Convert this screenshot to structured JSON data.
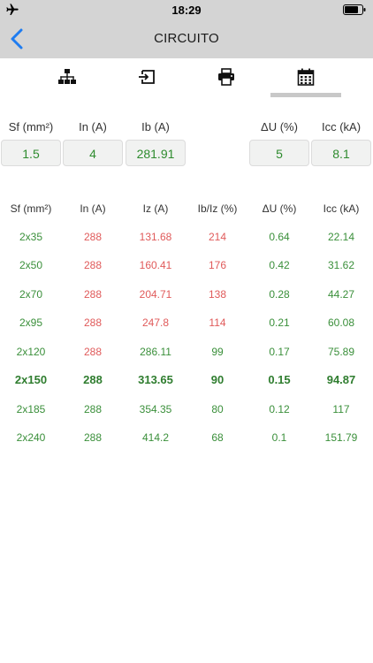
{
  "status": {
    "time": "18:29"
  },
  "nav": {
    "title": "CIRCUITO"
  },
  "tabs": [
    {
      "icon": "sitemap-icon"
    },
    {
      "icon": "input-icon"
    },
    {
      "icon": "print-icon"
    },
    {
      "icon": "calendar-icon",
      "active": true
    }
  ],
  "inputs": [
    {
      "label": "Sf (mm²)",
      "value": "1.5"
    },
    {
      "label": "In (A)",
      "value": "4"
    },
    {
      "label": "Ib (A)",
      "value": "281.91"
    },
    {
      "label": "ΔU (%)",
      "value": "5"
    },
    {
      "label": "Icc (kA)",
      "value": "8.1"
    }
  ],
  "table": {
    "headers": [
      "Sf (mm²)",
      "In (A)",
      "Iz (A)",
      "Ib/Iz (%)",
      "ΔU (%)",
      "Icc (kA)"
    ],
    "rows": [
      {
        "sf": "2x35",
        "in": "288",
        "iz": "131.68",
        "ibiz": "214",
        "du": "0.64",
        "icc": "22.14"
      },
      {
        "sf": "2x50",
        "in": "288",
        "iz": "160.41",
        "ibiz": "176",
        "du": "0.42",
        "icc": "31.62"
      },
      {
        "sf": "2x70",
        "in": "288",
        "iz": "204.71",
        "ibiz": "138",
        "du": "0.28",
        "icc": "44.27"
      },
      {
        "sf": "2x95",
        "in": "288",
        "iz": "247.8",
        "ibiz": "114",
        "du": "0.21",
        "icc": "60.08"
      },
      {
        "sf": "2x120",
        "in": "288",
        "iz": "286.11",
        "ibiz": "99",
        "du": "0.17",
        "icc": "75.89"
      },
      {
        "sf": "2x150",
        "in": "288",
        "iz": "313.65",
        "ibiz": "90",
        "du": "0.15",
        "icc": "94.87"
      },
      {
        "sf": "2x185",
        "in": "288",
        "iz": "354.35",
        "ibiz": "80",
        "du": "0.12",
        "icc": "117"
      },
      {
        "sf": "2x240",
        "in": "288",
        "iz": "414.2",
        "ibiz": "68",
        "du": "0.1",
        "icc": "151.79"
      }
    ]
  },
  "colors": {
    "ok": "#3a8f3a",
    "warn": "#e05a5a",
    "bar": "#d4d4d4",
    "accent": "#1e7cf0"
  }
}
